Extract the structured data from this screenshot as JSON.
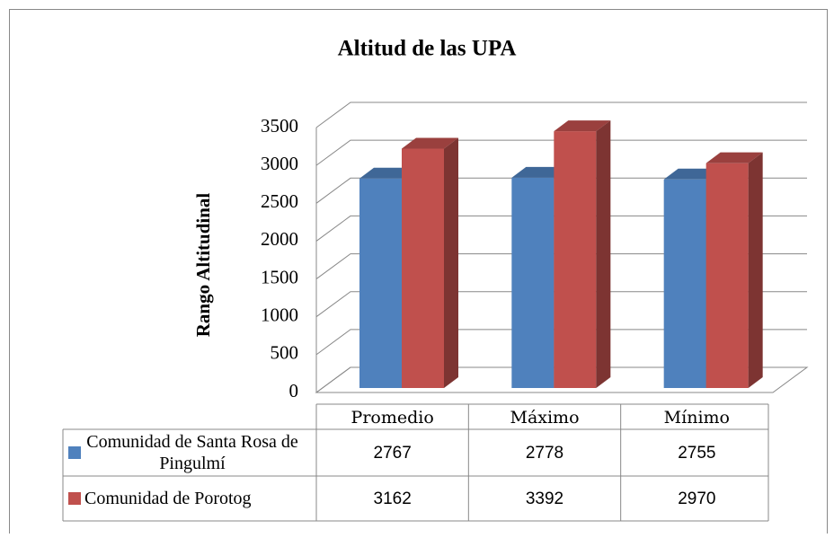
{
  "chart_data": {
    "type": "bar3d",
    "title": "Altitud de las UPA",
    "y_label": "Rango Altitudinal",
    "categories": [
      "Promedio",
      "Máximo",
      "Mínimo"
    ],
    "series": [
      {
        "name": "Comunidad de Santa Rosa de Pingulmí",
        "color": "#4f81bd",
        "values": [
          2767,
          2778,
          2755
        ]
      },
      {
        "name": "Comunidad de Porotog",
        "color": "#c0504d",
        "values": [
          3162,
          3392,
          2970
        ]
      }
    ],
    "ylim": [
      0,
      3500
    ],
    "yticks": [
      0,
      500,
      1000,
      1500,
      2000,
      2500,
      3000,
      3500
    ],
    "grid": true,
    "data_table": true
  }
}
